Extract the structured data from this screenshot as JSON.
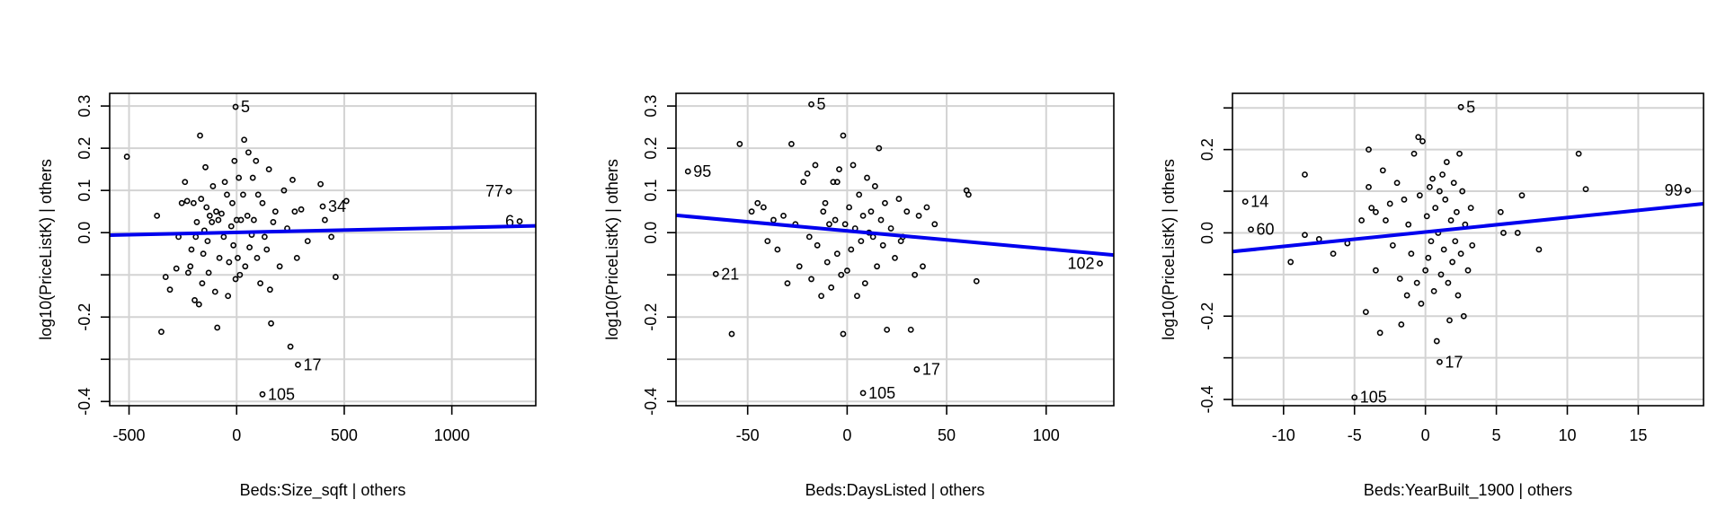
{
  "chart_data": [
    {
      "type": "scatter",
      "title": "",
      "xlabel": "Beds:Size_sqft | others",
      "ylabel": "log10(PriceListK)  | others",
      "xlim": [
        -590,
        1390
      ],
      "ylim": [
        -0.41,
        0.33
      ],
      "xticks": [
        -500,
        0,
        500,
        1000
      ],
      "xtick_labels": [
        "-500",
        "0",
        "500",
        "1000"
      ],
      "yticks": [
        -0.4,
        -0.3,
        -0.2,
        -0.1,
        0.0,
        0.1,
        0.2,
        0.3
      ],
      "ytick_labels": [
        "-0.4",
        "",
        "-0.2",
        "",
        "0.0",
        "0.1",
        "0.2",
        "0.3"
      ],
      "grid": true,
      "fit_line": {
        "x": [
          -590,
          1390
        ],
        "y": [
          -0.006,
          0.016
        ]
      },
      "labeled_points": [
        {
          "label": "5",
          "x": -5,
          "y": 0.298
        },
        {
          "label": "77",
          "x": 1265,
          "y": 0.098
        },
        {
          "label": "34",
          "x": 400,
          "y": 0.062
        },
        {
          "label": "6",
          "x": 1315,
          "y": 0.027
        },
        {
          "label": "17",
          "x": 285,
          "y": -0.313
        },
        {
          "label": "105",
          "x": 120,
          "y": -0.383
        }
      ],
      "points": [
        [
          -510,
          0.18
        ],
        [
          -370,
          0.04
        ],
        [
          -350,
          -0.235
        ],
        [
          -330,
          -0.105
        ],
        [
          -310,
          -0.135
        ],
        [
          -280,
          -0.085
        ],
        [
          -270,
          -0.01
        ],
        [
          -255,
          0.07
        ],
        [
          -240,
          0.12
        ],
        [
          -230,
          0.075
        ],
        [
          -225,
          -0.095
        ],
        [
          -215,
          -0.08
        ],
        [
          -210,
          -0.04
        ],
        [
          -200,
          0.07
        ],
        [
          -195,
          -0.16
        ],
        [
          -190,
          -0.01
        ],
        [
          -185,
          0.025
        ],
        [
          -175,
          -0.17
        ],
        [
          -170,
          0.23
        ],
        [
          -165,
          0.08
        ],
        [
          -160,
          -0.12
        ],
        [
          -155,
          -0.05
        ],
        [
          -150,
          0.005
        ],
        [
          -145,
          0.155
        ],
        [
          -140,
          0.06
        ],
        [
          -135,
          -0.02
        ],
        [
          -130,
          -0.095
        ],
        [
          -125,
          0.04
        ],
        [
          -115,
          0.025
        ],
        [
          -110,
          0.11
        ],
        [
          -100,
          -0.14
        ],
        [
          -95,
          0.05
        ],
        [
          -90,
          -0.225
        ],
        [
          -85,
          0.03
        ],
        [
          -80,
          -0.06
        ],
        [
          -70,
          0.045
        ],
        [
          -60,
          -0.01
        ],
        [
          -55,
          0.12
        ],
        [
          -45,
          0.09
        ],
        [
          -40,
          -0.15
        ],
        [
          -35,
          -0.07
        ],
        [
          -25,
          0.015
        ],
        [
          -20,
          0.07
        ],
        [
          -15,
          -0.03
        ],
        [
          -10,
          0.17
        ],
        [
          -5,
          -0.11
        ],
        [
          0,
          0.03
        ],
        [
          5,
          -0.06
        ],
        [
          10,
          0.13
        ],
        [
          15,
          -0.1
        ],
        [
          20,
          0.03
        ],
        [
          30,
          0.09
        ],
        [
          35,
          0.22
        ],
        [
          40,
          -0.08
        ],
        [
          50,
          0.04
        ],
        [
          55,
          0.19
        ],
        [
          60,
          -0.035
        ],
        [
          70,
          -0.005
        ],
        [
          75,
          0.13
        ],
        [
          80,
          0.03
        ],
        [
          90,
          0.17
        ],
        [
          95,
          -0.06
        ],
        [
          100,
          0.09
        ],
        [
          110,
          -0.12
        ],
        [
          120,
          0.07
        ],
        [
          130,
          -0.01
        ],
        [
          140,
          -0.04
        ],
        [
          150,
          0.15
        ],
        [
          155,
          -0.135
        ],
        [
          160,
          -0.215
        ],
        [
          170,
          0.025
        ],
        [
          180,
          0.05
        ],
        [
          200,
          -0.08
        ],
        [
          220,
          0.1
        ],
        [
          235,
          0.01
        ],
        [
          250,
          -0.27
        ],
        [
          260,
          0.125
        ],
        [
          270,
          0.05
        ],
        [
          280,
          -0.06
        ],
        [
          300,
          0.055
        ],
        [
          330,
          -0.02
        ],
        [
          390,
          0.115
        ],
        [
          410,
          0.03
        ],
        [
          440,
          -0.01
        ],
        [
          460,
          -0.105
        ],
        [
          510,
          0.075
        ]
      ]
    },
    {
      "type": "scatter",
      "title": "",
      "xlabel": "Beds:DaysListed | others",
      "ylabel": "log10(PriceListK)  | others",
      "xlim": [
        -86,
        134
      ],
      "ylim": [
        -0.41,
        0.33
      ],
      "xticks": [
        -50,
        0,
        50,
        100
      ],
      "xtick_labels": [
        "-50",
        "0",
        "50",
        "100"
      ],
      "yticks": [
        -0.4,
        -0.3,
        -0.2,
        -0.1,
        0.0,
        0.1,
        0.2,
        0.3
      ],
      "ytick_labels": [
        "-0.4",
        "",
        "-0.2",
        "",
        "0.0",
        "0.1",
        "0.2",
        "0.3"
      ],
      "grid": true,
      "fit_line": {
        "x": [
          -86,
          134
        ],
        "y": [
          0.041,
          -0.053
        ]
      },
      "labeled_points": [
        {
          "label": "5",
          "x": -18,
          "y": 0.304
        },
        {
          "label": "95",
          "x": -80,
          "y": 0.145
        },
        {
          "label": "21",
          "x": -66,
          "y": -0.098
        },
        {
          "label": "102",
          "x": 127,
          "y": -0.073
        },
        {
          "label": "17",
          "x": 35,
          "y": -0.324
        },
        {
          "label": "105",
          "x": 8,
          "y": -0.38
        }
      ],
      "points": [
        [
          -58,
          -0.24
        ],
        [
          -54,
          0.21
        ],
        [
          -48,
          0.05
        ],
        [
          -45,
          0.07
        ],
        [
          -42,
          0.06
        ],
        [
          -40,
          -0.02
        ],
        [
          -37,
          0.03
        ],
        [
          -35,
          -0.04
        ],
        [
          -32,
          0.04
        ],
        [
          -30,
          -0.12
        ],
        [
          -28,
          0.21
        ],
        [
          -26,
          0.02
        ],
        [
          -24,
          -0.08
        ],
        [
          -22,
          0.12
        ],
        [
          -20,
          0.14
        ],
        [
          -19,
          -0.01
        ],
        [
          -18,
          -0.11
        ],
        [
          -16,
          0.16
        ],
        [
          -15,
          -0.03
        ],
        [
          -13,
          -0.15
        ],
        [
          -12,
          0.05
        ],
        [
          -11,
          0.07
        ],
        [
          -10,
          -0.07
        ],
        [
          -9,
          0.02
        ],
        [
          -8,
          -0.13
        ],
        [
          -7,
          0.12
        ],
        [
          -6,
          0.03
        ],
        [
          -5,
          -0.05
        ],
        [
          -4,
          0.15
        ],
        [
          -3,
          -0.1
        ],
        [
          -2,
          0.23
        ],
        [
          -1,
          0.02
        ],
        [
          0,
          -0.09
        ],
        [
          1,
          0.06
        ],
        [
          2,
          -0.04
        ],
        [
          3,
          0.16
        ],
        [
          4,
          0.01
        ],
        [
          5,
          -0.15
        ],
        [
          6,
          0.09
        ],
        [
          7,
          -0.02
        ],
        [
          8,
          0.04
        ],
        [
          9,
          -0.12
        ],
        [
          10,
          0.13
        ],
        [
          11,
          0.0
        ],
        [
          12,
          0.05
        ],
        [
          13,
          -0.01
        ],
        [
          14,
          0.11
        ],
        [
          15,
          -0.08
        ],
        [
          16,
          0.2
        ],
        [
          17,
          0.03
        ],
        [
          18,
          -0.03
        ],
        [
          19,
          0.07
        ],
        [
          20,
          -0.23
        ],
        [
          22,
          0.01
        ],
        [
          24,
          -0.06
        ],
        [
          26,
          0.08
        ],
        [
          28,
          -0.01
        ],
        [
          30,
          0.05
        ],
        [
          32,
          -0.23
        ],
        [
          34,
          -0.1
        ],
        [
          36,
          0.04
        ],
        [
          38,
          -0.08
        ],
        [
          40,
          0.06
        ],
        [
          44,
          0.02
        ],
        [
          60,
          0.1
        ],
        [
          61,
          0.09
        ],
        [
          65,
          -0.115
        ],
        [
          -2,
          -0.24
        ],
        [
          -5,
          0.12
        ],
        [
          27,
          -0.02
        ]
      ]
    },
    {
      "type": "scatter",
      "title": "",
      "xlabel": "Beds:YearBuilt_1900 | others",
      "ylabel": "log10(PriceListK)  | others",
      "xlim": [
        -13.6,
        19.6
      ],
      "ylim": [
        -0.415,
        0.335
      ],
      "xticks": [
        -10,
        -5,
        0,
        5,
        10,
        15
      ],
      "xtick_labels": [
        "-10",
        "-5",
        "0",
        "5",
        "10",
        "15"
      ],
      "yticks": [
        -0.4,
        -0.3,
        -0.2,
        -0.1,
        0.0,
        0.1,
        0.2,
        0.3
      ],
      "ytick_labels": [
        "-0.4",
        "",
        "-0.2",
        "",
        "0.0",
        "",
        "0.2",
        ""
      ],
      "grid": true,
      "fit_line": {
        "x": [
          -13.6,
          19.6
        ],
        "y": [
          -0.045,
          0.07
        ]
      },
      "labeled_points": [
        {
          "label": "5",
          "x": 2.5,
          "y": 0.302
        },
        {
          "label": "14",
          "x": -12.7,
          "y": 0.075
        },
        {
          "label": "60",
          "x": -12.3,
          "y": 0.008
        },
        {
          "label": "99",
          "x": 18.5,
          "y": 0.102
        },
        {
          "label": "17",
          "x": 1.0,
          "y": -0.31
        },
        {
          "label": "105",
          "x": -5.0,
          "y": -0.395
        }
      ],
      "points": [
        [
          -9.5,
          -0.07
        ],
        [
          -8.5,
          0.14
        ],
        [
          -8.5,
          -0.005
        ],
        [
          -7.5,
          -0.015
        ],
        [
          -6.5,
          -0.05
        ],
        [
          -5.5,
          -0.025
        ],
        [
          -4.5,
          0.03
        ],
        [
          -4.2,
          -0.19
        ],
        [
          -4.0,
          0.11
        ],
        [
          -4.0,
          0.2
        ],
        [
          -3.8,
          0.06
        ],
        [
          -3.5,
          0.05
        ],
        [
          -3.5,
          -0.09
        ],
        [
          -3.2,
          -0.24
        ],
        [
          -3.0,
          0.15
        ],
        [
          -2.8,
          0.03
        ],
        [
          -2.5,
          0.07
        ],
        [
          -2.3,
          -0.03
        ],
        [
          -2.0,
          0.12
        ],
        [
          -1.8,
          -0.11
        ],
        [
          -1.7,
          -0.22
        ],
        [
          -1.5,
          0.08
        ],
        [
          -1.3,
          -0.15
        ],
        [
          -1.2,
          0.02
        ],
        [
          -1.0,
          -0.05
        ],
        [
          -0.8,
          0.19
        ],
        [
          -0.6,
          -0.12
        ],
        [
          -0.4,
          0.09
        ],
        [
          -0.3,
          -0.17
        ],
        [
          -0.2,
          0.22
        ],
        [
          0.0,
          -0.09
        ],
        [
          0.1,
          0.04
        ],
        [
          0.2,
          -0.06
        ],
        [
          0.3,
          0.11
        ],
        [
          0.4,
          -0.02
        ],
        [
          0.5,
          0.13
        ],
        [
          0.6,
          -0.14
        ],
        [
          0.7,
          0.06
        ],
        [
          0.8,
          -0.26
        ],
        [
          0.9,
          0.0
        ],
        [
          1.0,
          0.1
        ],
        [
          1.1,
          -0.1
        ],
        [
          1.2,
          0.14
        ],
        [
          1.3,
          -0.04
        ],
        [
          1.4,
          0.08
        ],
        [
          1.5,
          0.17
        ],
        [
          1.6,
          -0.12
        ],
        [
          1.8,
          0.03
        ],
        [
          1.9,
          -0.07
        ],
        [
          2.0,
          0.12
        ],
        [
          2.1,
          -0.02
        ],
        [
          2.2,
          0.05
        ],
        [
          2.3,
          -0.15
        ],
        [
          2.4,
          0.19
        ],
        [
          2.5,
          -0.05
        ],
        [
          2.6,
          0.1
        ],
        [
          2.7,
          -0.2
        ],
        [
          2.8,
          0.02
        ],
        [
          3.0,
          -0.09
        ],
        [
          3.2,
          0.06
        ],
        [
          3.3,
          -0.03
        ],
        [
          5.3,
          0.05
        ],
        [
          5.5,
          0.0
        ],
        [
          6.5,
          0.0
        ],
        [
          6.8,
          0.09
        ],
        [
          8.0,
          -0.04
        ],
        [
          10.8,
          0.19
        ],
        [
          11.3,
          0.105
        ],
        [
          -0.5,
          0.23
        ],
        [
          1.7,
          -0.21
        ]
      ]
    }
  ]
}
